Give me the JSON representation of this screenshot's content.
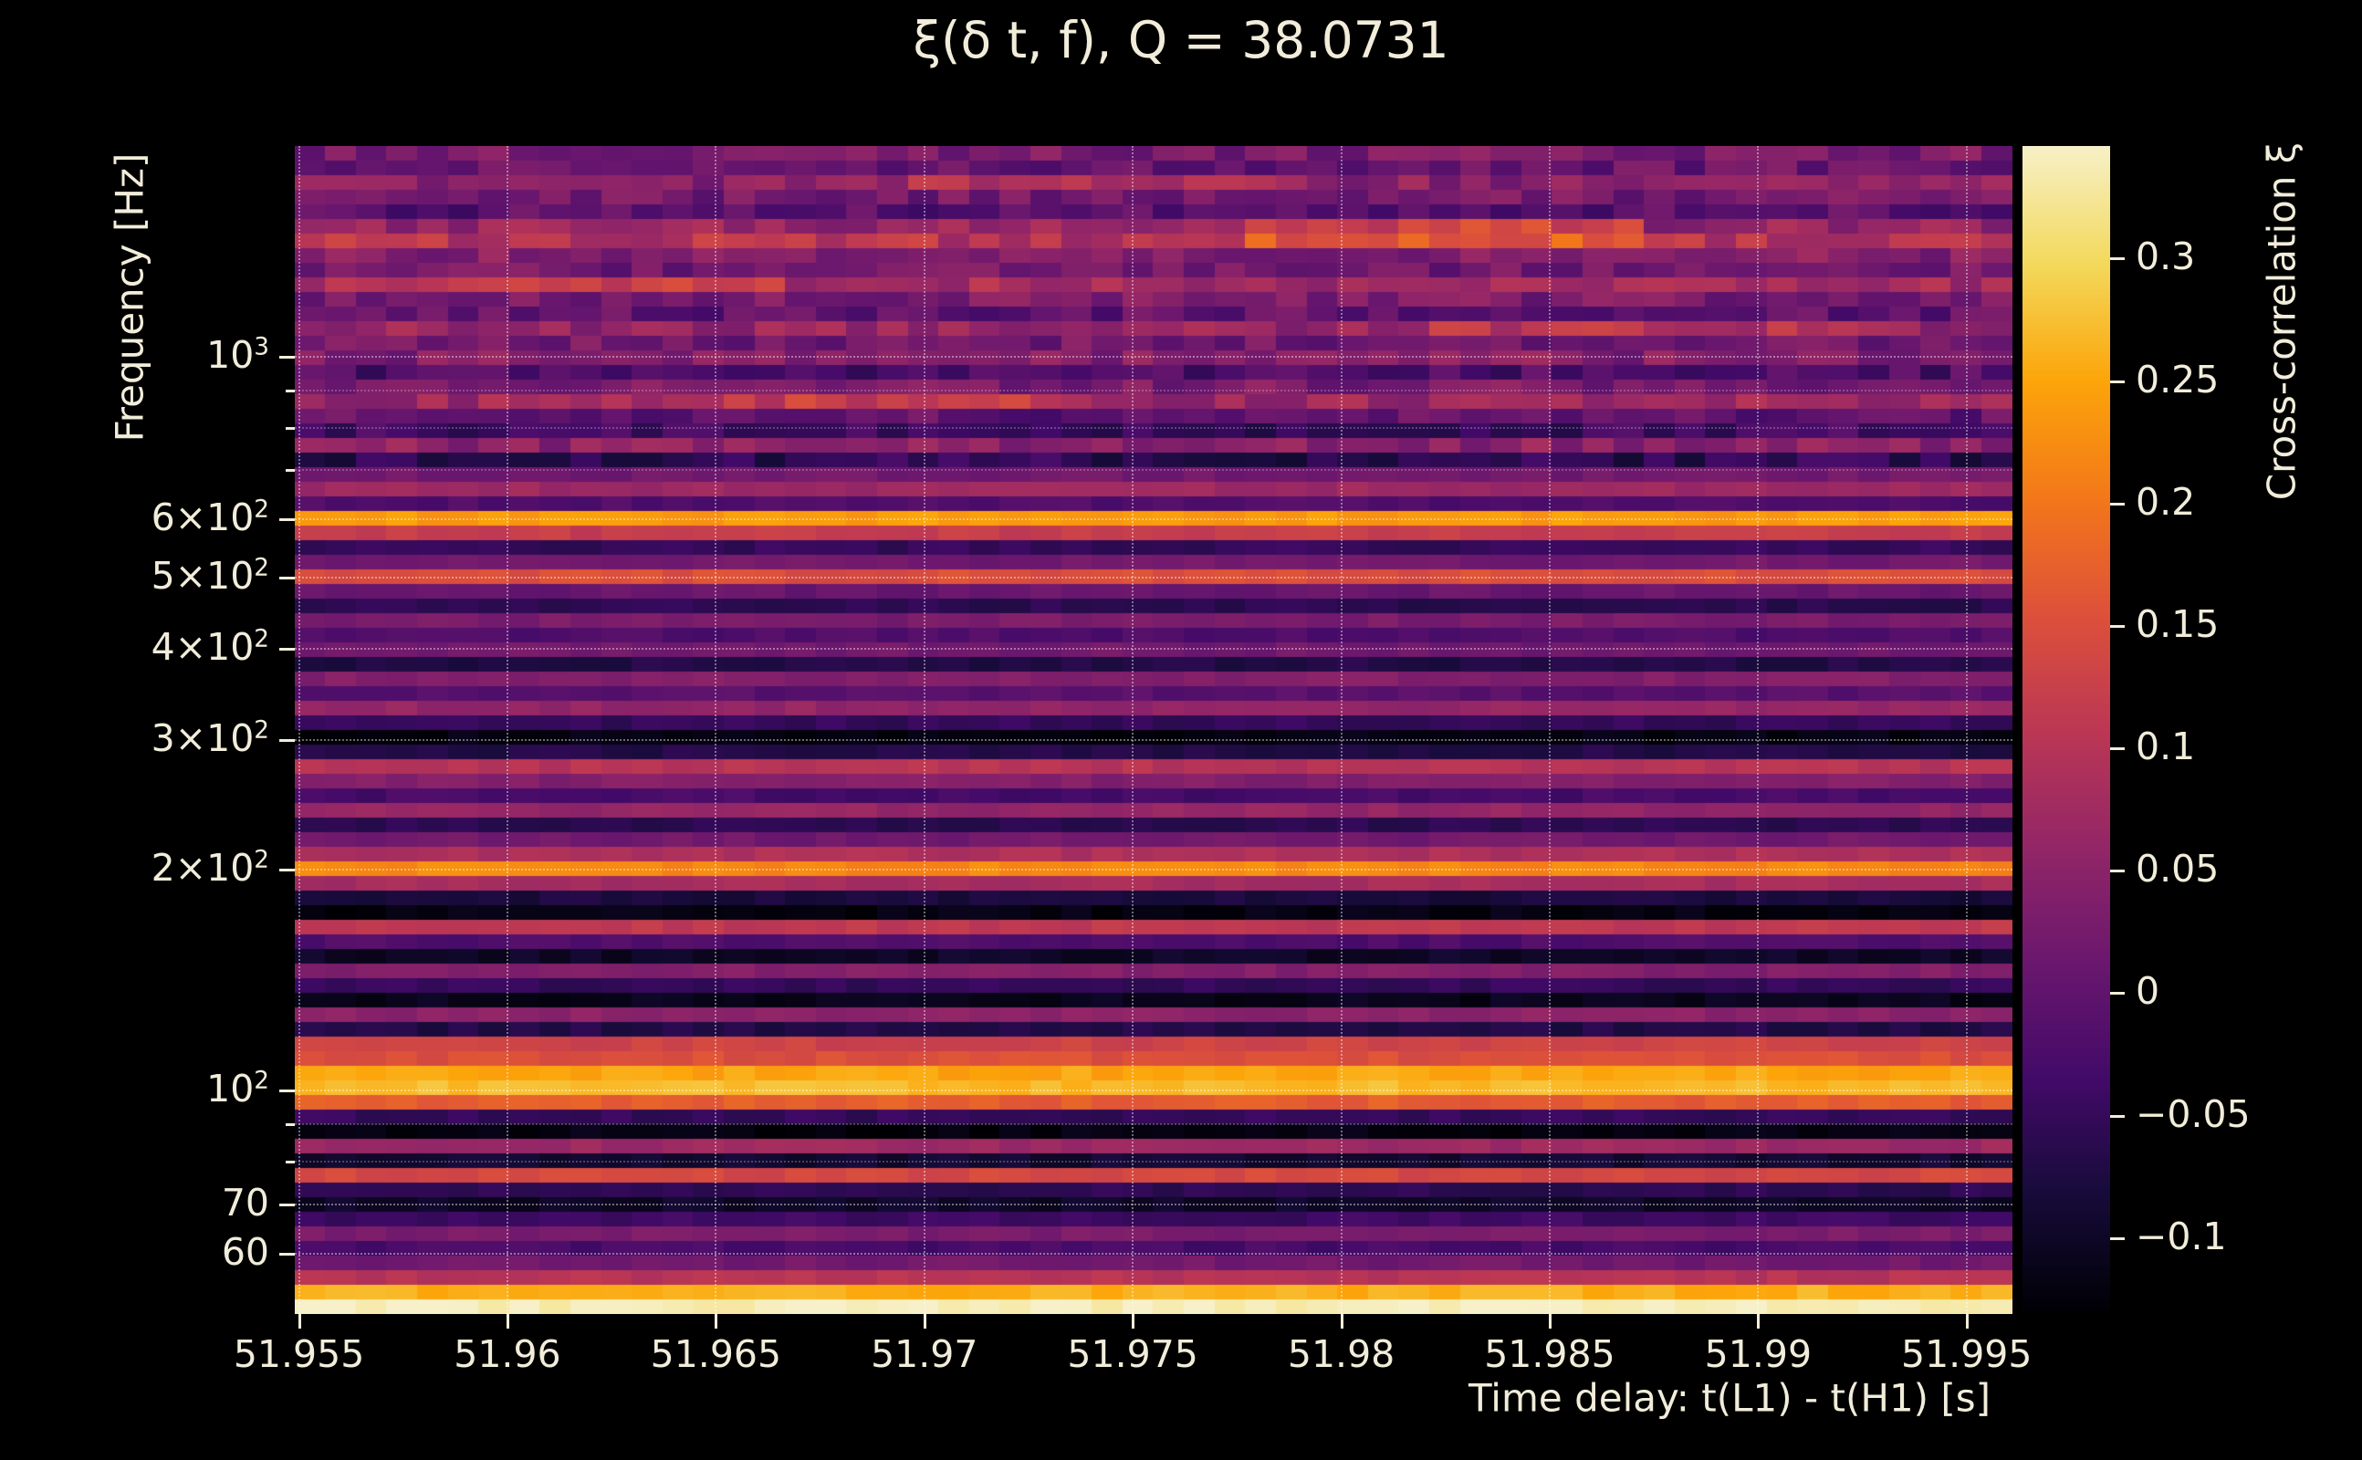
{
  "colors": {
    "background": "#000000",
    "text": "#f2edda",
    "grid_major": "rgba(255,255,255,0.42)",
    "grid_minor": "rgba(255,255,255,0.24)"
  },
  "chart_data": {
    "type": "heatmap",
    "title": "ξ(δ t, f), Q = 38.0731",
    "xlabel": "Time delay: t(L1) - t(H1) [s]",
    "ylabel": "Frequency [Hz]",
    "colorbar_label": "Cross-correlation ξ",
    "x_range": [
      51.9549,
      51.9961
    ],
    "x_ticks": [
      {
        "v": 51.955,
        "label": "51.955"
      },
      {
        "v": 51.96,
        "label": "51.96"
      },
      {
        "v": 51.965,
        "label": "51.965"
      },
      {
        "v": 51.97,
        "label": "51.97"
      },
      {
        "v": 51.975,
        "label": "51.975"
      },
      {
        "v": 51.98,
        "label": "51.98"
      },
      {
        "v": 51.985,
        "label": "51.985"
      },
      {
        "v": 51.99,
        "label": "51.99"
      },
      {
        "v": 51.995,
        "label": "51.995"
      }
    ],
    "y_scale": "log",
    "y_range_hz": [
      49.6,
      1936
    ],
    "y_ticks": [
      {
        "f": 1000,
        "base": "10",
        "sup": "3"
      },
      {
        "f": 600,
        "base": "6×10",
        "sup": "2"
      },
      {
        "f": 500,
        "base": "5×10",
        "sup": "2"
      },
      {
        "f": 400,
        "base": "4×10",
        "sup": "2"
      },
      {
        "f": 300,
        "base": "3×10",
        "sup": "2"
      },
      {
        "f": 200,
        "base": "2×10",
        "sup": "2"
      },
      {
        "f": 100,
        "base": "10",
        "sup": "2"
      },
      {
        "f": 70,
        "base": "70",
        "sup": ""
      },
      {
        "f": 60,
        "base": "60",
        "sup": ""
      }
    ],
    "y_minor_gridlines_hz": [
      900,
      800,
      700,
      90,
      80
    ],
    "colorbar": {
      "vmin": -0.131,
      "vmax": 0.346,
      "ticks": [
        {
          "v": 0.3,
          "label": "0.3"
        },
        {
          "v": 0.25,
          "label": "0.25"
        },
        {
          "v": 0.2,
          "label": "0.2"
        },
        {
          "v": 0.15,
          "label": "0.15"
        },
        {
          "v": 0.1,
          "label": "0.1"
        },
        {
          "v": 0.05,
          "label": "0.05"
        },
        {
          "v": 0,
          "label": "0"
        },
        {
          "v": -0.05,
          "label": "−0.05"
        },
        {
          "v": -0.1,
          "label": "−0.1"
        }
      ]
    },
    "colormap_stops": [
      [
        0.0,
        "#000004"
      ],
      [
        0.1,
        "#160b39"
      ],
      [
        0.2,
        "#420a68"
      ],
      [
        0.3,
        "#6a176e"
      ],
      [
        0.4,
        "#932667"
      ],
      [
        0.5,
        "#bc3754"
      ],
      [
        0.6,
        "#dd513a"
      ],
      [
        0.7,
        "#f37819"
      ],
      [
        0.8,
        "#fca50a"
      ],
      [
        0.9,
        "#f3d95c"
      ],
      [
        1.0,
        "#f7f0c8"
      ]
    ],
    "rows_note": "cross-correlation ξ per log-spaced frequency row, ordered top (1936 Hz) to bottom (50 Hz)",
    "rows": [
      0.03,
      0.01,
      0.05,
      0.02,
      -0.01,
      0.06,
      0.1,
      0.04,
      0.02,
      0.08,
      0.03,
      0.0,
      0.06,
      0.02,
      0.04,
      -0.02,
      0.03,
      0.07,
      0.0,
      -0.04,
      0.05,
      -0.06,
      0.02,
      0.07,
      -0.02,
      0.24,
      0.12,
      -0.05,
      0.02,
      0.15,
      0.01,
      -0.06,
      0.03,
      -0.02,
      0.02,
      -0.07,
      0.04,
      -0.01,
      0.06,
      -0.05,
      -0.12,
      -0.07,
      0.1,
      0.04,
      -0.03,
      0.06,
      -0.06,
      0.02,
      0.09,
      0.22,
      0.08,
      -0.08,
      -0.12,
      0.11,
      -0.02,
      -0.1,
      0.04,
      -0.05,
      -0.11,
      0.05,
      -0.07,
      0.13,
      0.15,
      0.25,
      0.27,
      0.17,
      -0.05,
      -0.12,
      0.07,
      -0.09,
      0.14,
      -0.06,
      -0.1,
      -0.04,
      0.03,
      -0.03,
      0.02,
      0.1,
      0.26,
      0.34
    ],
    "n_time_cells": 56,
    "texture": {
      "rows_from_top": 22,
      "amp_top": 0.035,
      "amp_base": 0.012
    },
    "patches": [
      {
        "row": 5,
        "span": 2,
        "t0": 0.55,
        "t1": 0.78,
        "dv": 0.07
      },
      {
        "row": 9,
        "span": 1,
        "t0": 0.08,
        "t1": 0.28,
        "dv": 0.05
      },
      {
        "row": 2,
        "span": 1,
        "t0": 0.35,
        "t1": 0.58,
        "dv": 0.04
      },
      {
        "row": 12,
        "span": 1,
        "t0": 0.65,
        "t1": 0.9,
        "dv": 0.04
      },
      {
        "row": 17,
        "span": 1,
        "t0": 0.25,
        "t1": 0.45,
        "dv": 0.05
      }
    ]
  }
}
